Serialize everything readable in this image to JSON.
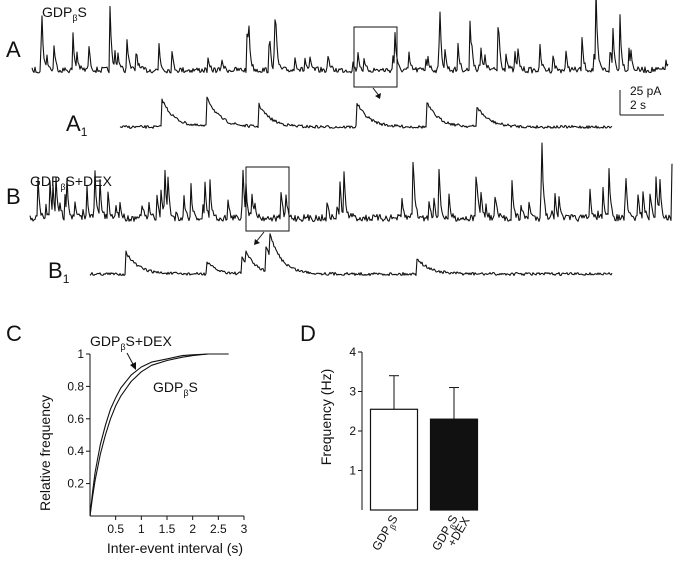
{
  "panels": {
    "A": {
      "letter": "A",
      "sub_letter": "A",
      "sub_index": "1",
      "condition_base": "GDP",
      "condition_sub": "β",
      "condition_suffix": "S"
    },
    "B": {
      "letter": "B",
      "sub_letter": "B",
      "sub_index": "1",
      "condition_base": "GDP",
      "condition_sub": "β",
      "condition_suffix": "S+DEX"
    },
    "C": {
      "letter": "C"
    },
    "D": {
      "letter": "D"
    }
  },
  "scale_bar": {
    "current": "25 pA",
    "time": "2 s"
  },
  "chart_data": [
    {
      "type": "line",
      "panel": "C",
      "xlabel": "Inter-event interval (s)",
      "ylabel": "Relative frequency",
      "xlim": [
        0,
        3
      ],
      "ylim": [
        0,
        1
      ],
      "x_ticks": [
        "0.5",
        "1",
        "1.5",
        "2",
        "2.5",
        "3"
      ],
      "y_ticks": [
        "0.2",
        "0.4",
        "0.6",
        "0.8",
        "1"
      ],
      "series": [
        {
          "name": "GDPβS",
          "label_base": "GDP",
          "label_sub": "β",
          "label_suffix": "S",
          "x": [
            0,
            0.05,
            0.1,
            0.2,
            0.3,
            0.4,
            0.5,
            0.6,
            0.8,
            1.0,
            1.2,
            1.5,
            1.8,
            2.0,
            2.3,
            2.6,
            2.7
          ],
          "y": [
            0,
            0.12,
            0.22,
            0.38,
            0.5,
            0.6,
            0.68,
            0.74,
            0.83,
            0.89,
            0.93,
            0.96,
            0.98,
            0.99,
            1.0,
            1.0,
            1.0
          ]
        },
        {
          "name": "GDPβS+DEX",
          "label_base": "GDP",
          "label_sub": "β",
          "label_suffix": "S+DEX",
          "x": [
            0,
            0.05,
            0.1,
            0.2,
            0.3,
            0.4,
            0.5,
            0.6,
            0.8,
            1.0,
            1.2,
            1.5,
            1.8,
            2.0,
            2.3,
            2.6,
            2.7
          ],
          "y": [
            0,
            0.15,
            0.27,
            0.44,
            0.56,
            0.66,
            0.73,
            0.79,
            0.87,
            0.92,
            0.95,
            0.97,
            0.99,
            0.995,
            1.0,
            1.0,
            1.0
          ]
        }
      ]
    },
    {
      "type": "bar",
      "panel": "D",
      "ylabel": "Frequency (Hz)",
      "ylim": [
        0,
        4
      ],
      "y_ticks": [
        "1",
        "2",
        "3",
        "4"
      ],
      "categories": [
        {
          "base": "GDP",
          "sub": "β",
          "suffix": "S",
          "line2": ""
        },
        {
          "base": "GDP",
          "sub": "β",
          "suffix": "S",
          "line2": "+DEX"
        }
      ],
      "values": [
        2.55,
        2.3
      ],
      "errors": [
        0.85,
        0.8
      ],
      "fills": [
        "#ffffff",
        "#111111"
      ]
    }
  ]
}
